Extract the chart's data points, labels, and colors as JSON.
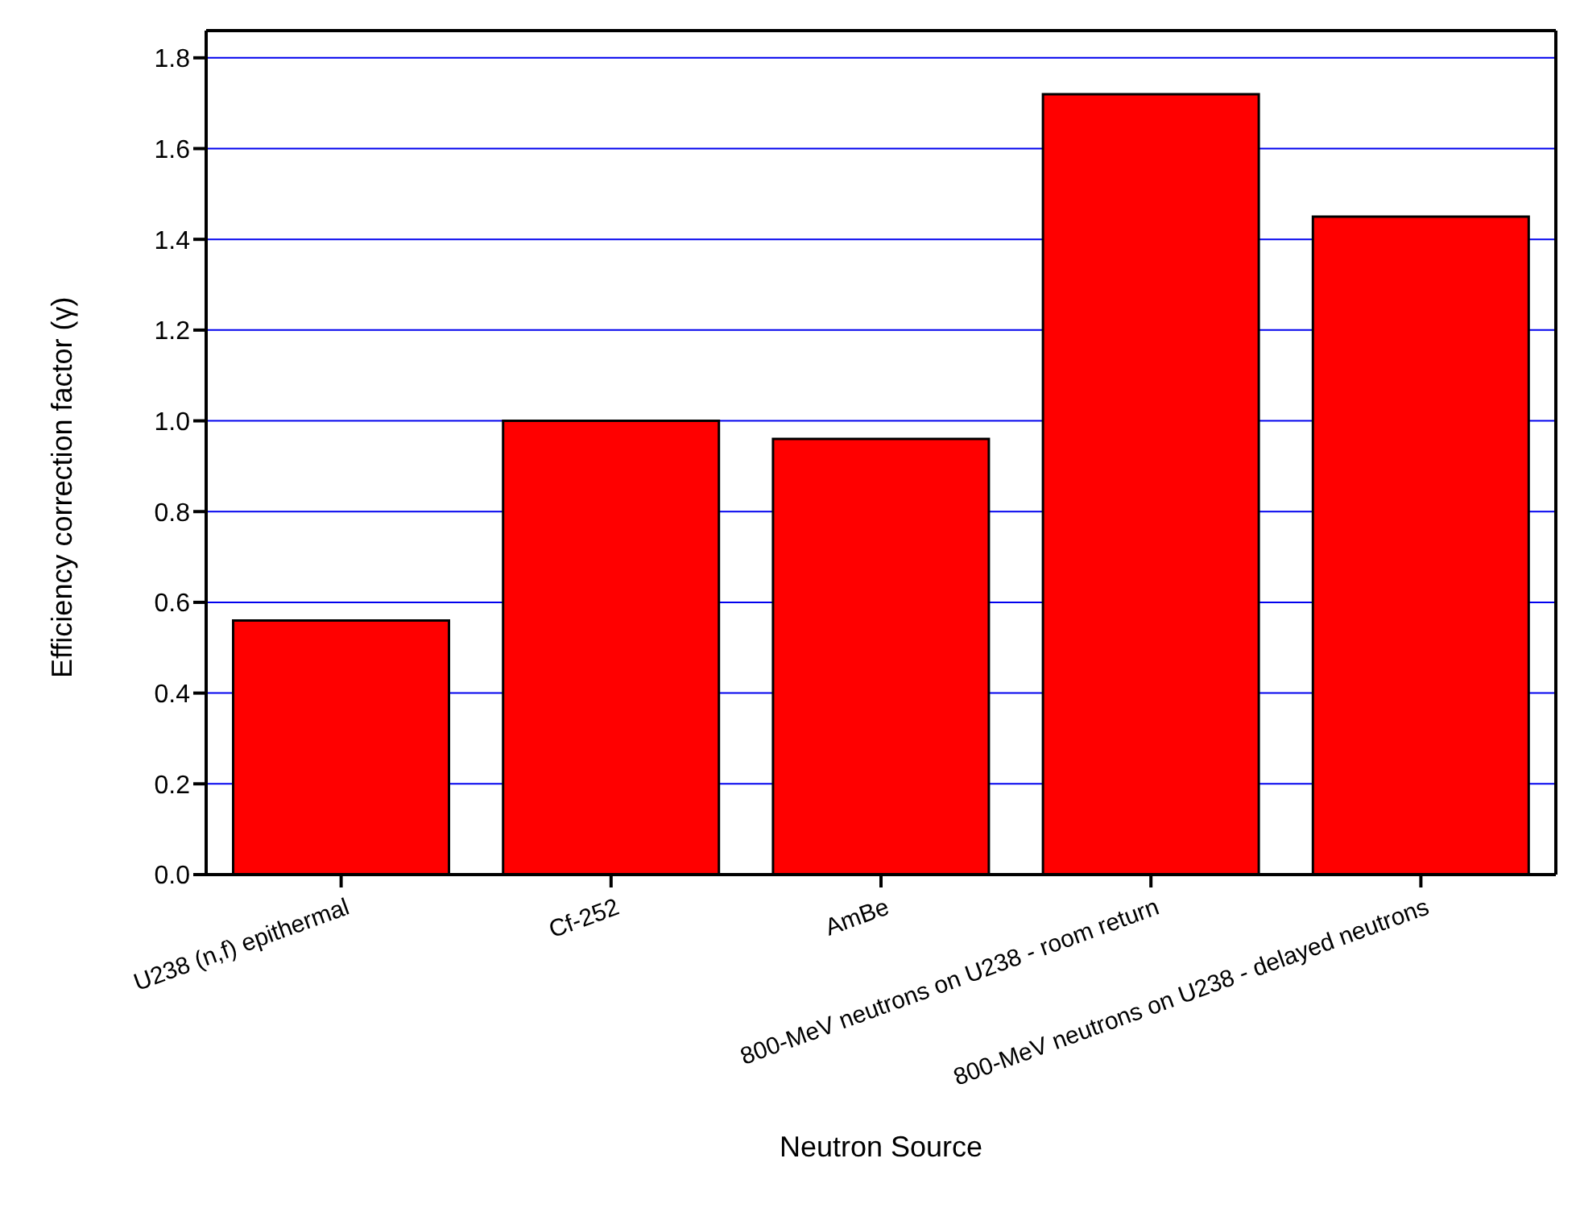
{
  "chart_data": {
    "type": "bar",
    "xlabel": "Neutron Source",
    "ylabel": "Efficiency correction factor (γ)",
    "categories": [
      "U238 (n,f) epithermal",
      "Cf-252",
      "AmBe",
      "800-MeV neutrons on U238 - room return",
      "800-MeV neutrons on U238 - delayed neutrons"
    ],
    "values": [
      0.56,
      1.0,
      0.96,
      1.72,
      1.45
    ],
    "color": "#ff0000",
    "ylim": [
      0,
      1.86
    ],
    "yticks": [
      {
        "value": 0,
        "label": "0.0"
      },
      {
        "value": 0.2,
        "label": "0.2"
      },
      {
        "value": 0.4,
        "label": "0.4"
      },
      {
        "value": 0.6,
        "label": "0.6"
      },
      {
        "value": 0.8,
        "label": "0.8"
      },
      {
        "value": 1,
        "label": "1.0"
      },
      {
        "value": 1.2,
        "label": "1.2"
      },
      {
        "value": 1.4,
        "label": "1.4"
      },
      {
        "value": 1.6,
        "label": "1.6"
      },
      {
        "value": 1.8,
        "label": "1.8"
      }
    ],
    "grid": "y"
  }
}
